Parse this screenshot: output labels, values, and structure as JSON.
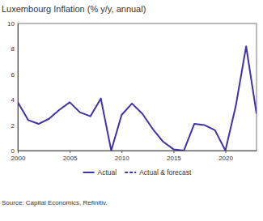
{
  "chart_data": {
    "type": "line",
    "title": "Luxembourg Inflation (% y/y, annual)",
    "x": [
      2000,
      2001,
      2002,
      2003,
      2004,
      2005,
      2006,
      2007,
      2008,
      2009,
      2010,
      2011,
      2012,
      2013,
      2014,
      2015,
      2016,
      2017,
      2018,
      2019,
      2020,
      2021,
      2022,
      2023
    ],
    "series": [
      {
        "name": "Actual",
        "color": "#3f33a8",
        "line_style": "solid",
        "values": [
          3.8,
          2.4,
          2.1,
          2.5,
          3.2,
          3.8,
          3.0,
          2.7,
          4.1,
          0.0,
          2.8,
          3.7,
          2.9,
          1.7,
          0.7,
          0.1,
          0.0,
          2.1,
          2.0,
          1.6,
          0.0,
          3.5,
          8.2,
          2.9
        ]
      },
      {
        "name": "Actual & forecast",
        "color": "#3f33a8",
        "line_style": "dashed",
        "values": [
          null,
          null,
          null,
          null,
          null,
          null,
          null,
          null,
          null,
          null,
          null,
          null,
          null,
          null,
          null,
          null,
          null,
          null,
          null,
          null,
          null,
          null,
          null,
          null
        ]
      }
    ],
    "xlim": [
      2000,
      2023
    ],
    "xticks": [
      2000,
      2005,
      2010,
      2015,
      2020
    ],
    "ylim": [
      0,
      10
    ],
    "yticks": [
      0,
      2,
      4,
      6,
      8,
      10
    ],
    "grid": false,
    "legend": "bottom",
    "source": "Source: Capital Economics, Refinitiv."
  }
}
